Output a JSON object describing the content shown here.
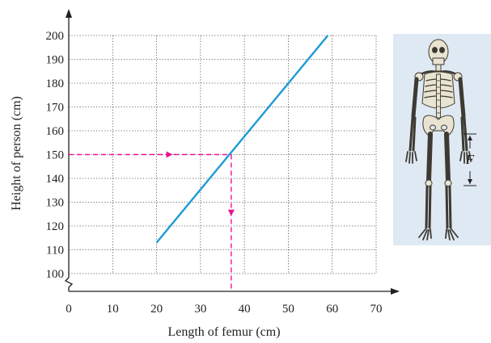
{
  "chart_data": {
    "type": "line",
    "title": "",
    "xlabel": "Length of femur (cm)",
    "ylabel": "Height of person (cm)",
    "xlim": [
      0,
      70
    ],
    "ylim": [
      100,
      200
    ],
    "x_ticks": [
      0,
      10,
      20,
      30,
      40,
      50,
      60,
      70
    ],
    "y_ticks": [
      100,
      110,
      120,
      130,
      140,
      150,
      160,
      170,
      180,
      190,
      200
    ],
    "y_axis_break": true,
    "grid": true,
    "series": [
      {
        "x": [
          20,
          59
        ],
        "y": [
          113,
          200
        ],
        "color": "#1e9ad6"
      }
    ],
    "annotations": [
      {
        "type": "dashed-arrow-horizontal",
        "from": [
          0,
          150
        ],
        "to": [
          37,
          150
        ],
        "color": "#e8138f"
      },
      {
        "type": "dashed-arrow-vertical",
        "from": [
          37,
          150
        ],
        "to": [
          37,
          100
        ],
        "color": "#e8138f"
      }
    ]
  },
  "illustration": {
    "icon": "skeleton-icon",
    "dimension_label": "F",
    "background": "#dfe9f3"
  }
}
